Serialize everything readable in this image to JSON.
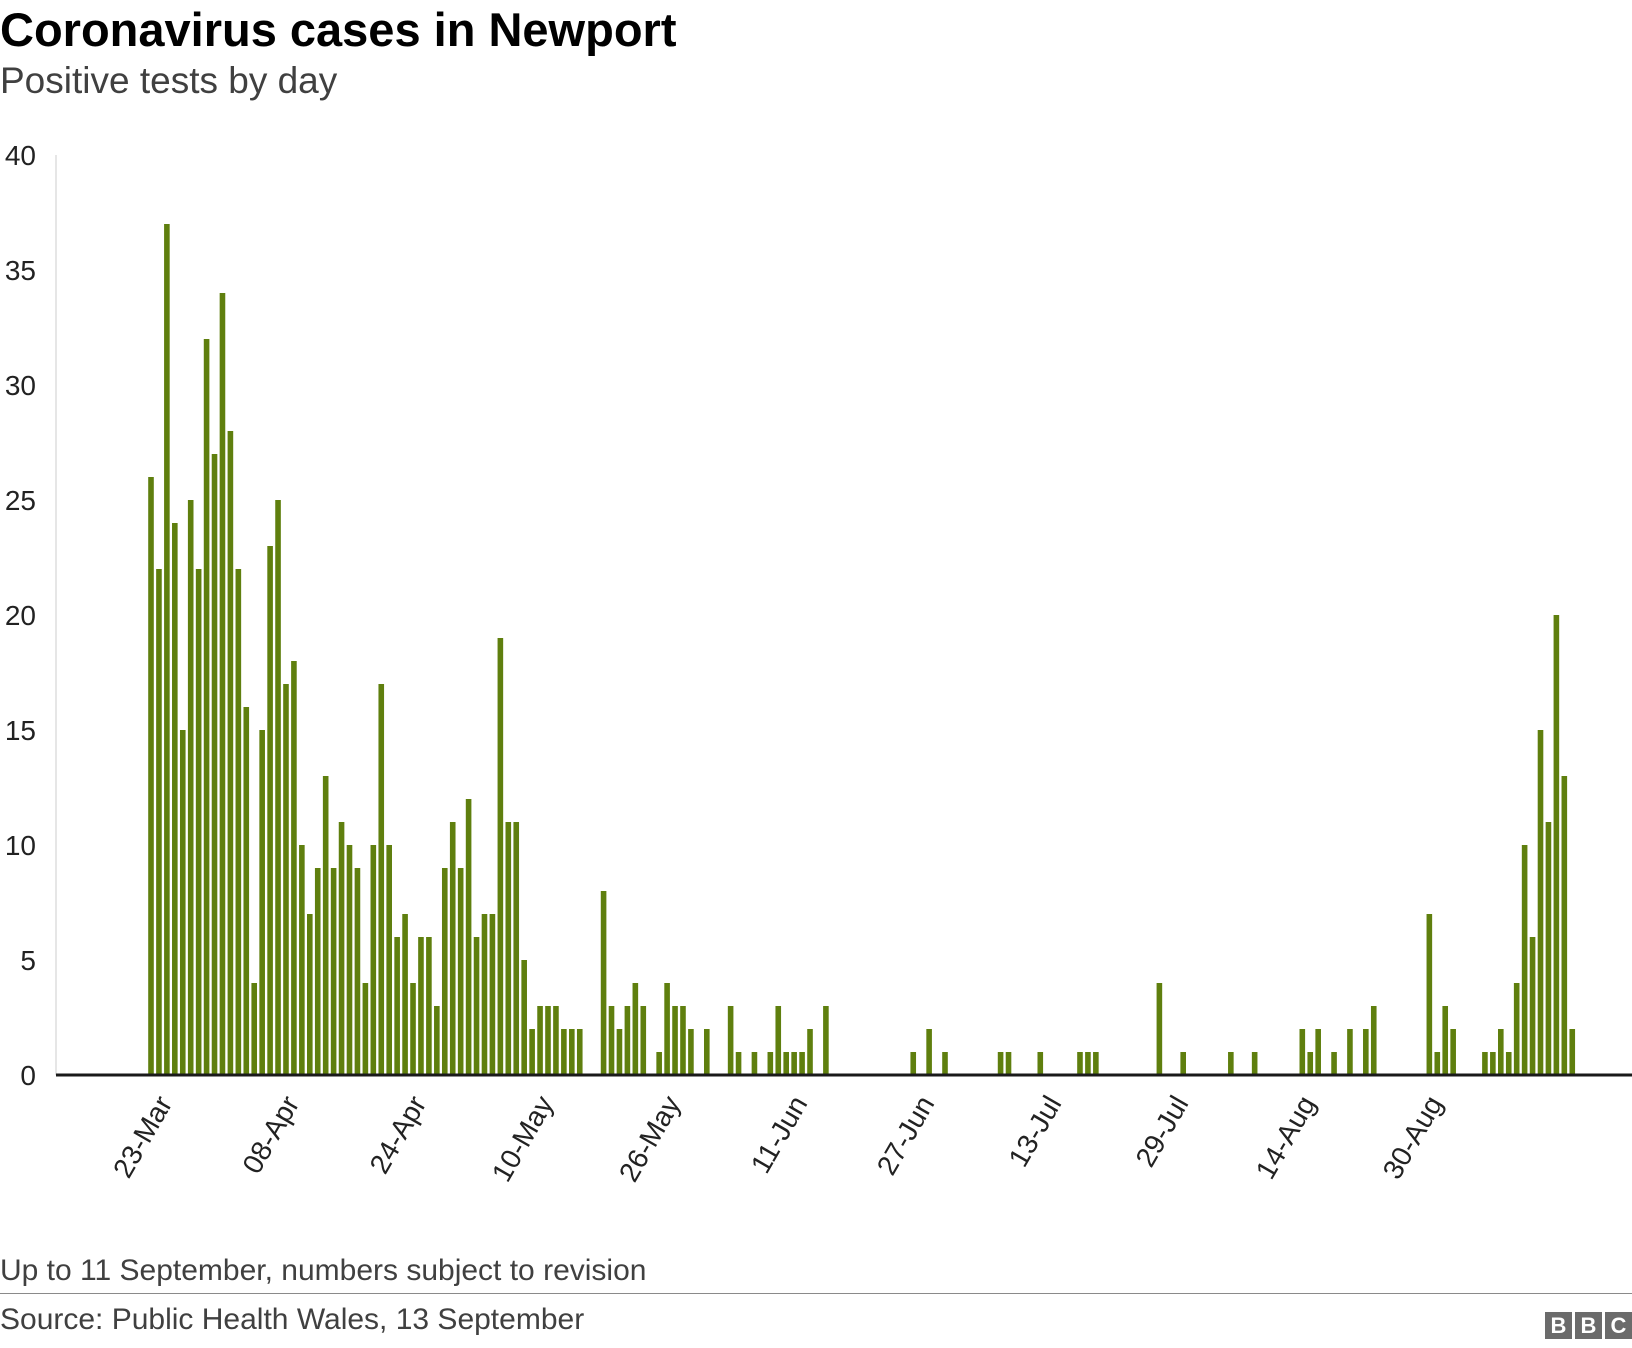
{
  "header": {
    "title": "Coronavirus cases in Newport",
    "subtitle": "Positive tests by day"
  },
  "footer": {
    "note": "Up to 11 September, numbers subject to revision",
    "source": "Source: Public Health Wales, 13 September",
    "logo_letters": [
      "B",
      "B",
      "C"
    ]
  },
  "colors": {
    "bar": "#5f7f0e",
    "axis": "#1a1a1a",
    "text": "#222222",
    "logo": "#6b6b6b"
  },
  "chart_data": {
    "type": "bar",
    "title": "Coronavirus cases in Newport",
    "subtitle": "Positive tests by day",
    "xlabel": "",
    "ylabel": "",
    "ylim": [
      0,
      40
    ],
    "yticks": [
      0,
      5,
      10,
      15,
      20,
      25,
      30,
      35,
      40
    ],
    "grid": false,
    "x_start": "2020-03-23",
    "x_end": "2020-09-11",
    "xtick_labels": [
      "23-Mar",
      "08-Apr",
      "24-Apr",
      "10-May",
      "26-May",
      "11-Jun",
      "27-Jun",
      "13-Jul",
      "29-Jul",
      "14-Aug",
      "30-Aug"
    ],
    "xtick_dates": [
      "2020-03-23",
      "2020-04-08",
      "2020-04-24",
      "2020-05-10",
      "2020-05-26",
      "2020-06-11",
      "2020-06-27",
      "2020-07-13",
      "2020-07-29",
      "2020-08-14",
      "2020-08-30"
    ],
    "series": [
      {
        "values": [
          26,
          22,
          37,
          24,
          15,
          25,
          22,
          32,
          27,
          34,
          28,
          22,
          16,
          4,
          15,
          23,
          25,
          17,
          18,
          10,
          7,
          9,
          13,
          9,
          11,
          10,
          9,
          4,
          10,
          17,
          10,
          6,
          7,
          4,
          6,
          6,
          3,
          9,
          11,
          9,
          12,
          6,
          7,
          7,
          19,
          11,
          11,
          5,
          2,
          3,
          3,
          3,
          2,
          2,
          2,
          0,
          0,
          8,
          3,
          2,
          3,
          4,
          3,
          0,
          1,
          4,
          3,
          3,
          2,
          0,
          2,
          0,
          0,
          3,
          1,
          0,
          1,
          0,
          1,
          3,
          1,
          1,
          1,
          2,
          0,
          3,
          0,
          0,
          0,
          0,
          0,
          0,
          0,
          0,
          0,
          0,
          1,
          0,
          2,
          0,
          1,
          0,
          0,
          0,
          0,
          0,
          0,
          1,
          1,
          0,
          0,
          0,
          1,
          0,
          0,
          0,
          0,
          1,
          1,
          1,
          0,
          0,
          0,
          0,
          0,
          0,
          0,
          4,
          0,
          0,
          1,
          0,
          0,
          0,
          0,
          0,
          1,
          0,
          0,
          1,
          0,
          0,
          0,
          0,
          0,
          2,
          1,
          2,
          0,
          1,
          0,
          2,
          0,
          2,
          3,
          0,
          0,
          0,
          0,
          0,
          0,
          7,
          1,
          3,
          2,
          0,
          0,
          0,
          1,
          1,
          2,
          1,
          4,
          10,
          6,
          15,
          11,
          20,
          13,
          2
        ]
      }
    ]
  }
}
